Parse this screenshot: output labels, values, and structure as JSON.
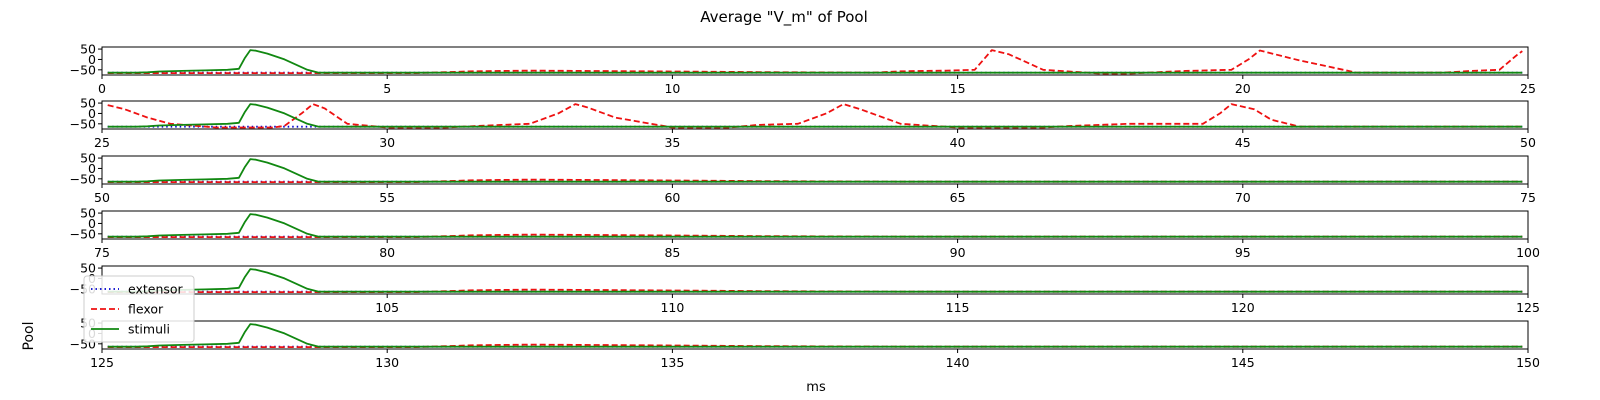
{
  "chart_data": {
    "type": "line",
    "title": "Average \"V_m\" of Pool",
    "xlabel": "ms",
    "ylabel": "Pool",
    "ylim": [
      -75,
      60
    ],
    "yticks": [
      50,
      0,
      -50
    ],
    "ytick_labels": [
      "50",
      "0",
      "−50"
    ],
    "grid": false,
    "legend": {
      "placement": "lower-left",
      "entries": [
        {
          "name": "extensor",
          "color": "#0000cc",
          "style": "dotted"
        },
        {
          "name": "flexor",
          "color": "#ee1111",
          "style": "dashed"
        },
        {
          "name": "stimuli",
          "color": "#118811",
          "style": "solid"
        }
      ]
    },
    "panels": [
      {
        "xlim": [
          0,
          25
        ],
        "xticks": [
          0,
          5,
          10,
          15,
          20,
          25
        ],
        "series": [
          {
            "name": "extensor",
            "x": [
              0.1,
              24.9
            ],
            "y": [
              -64,
              -64
            ]
          },
          {
            "name": "flexor",
            "x": [
              0.1,
              5.5,
              6.5,
              7.5,
              9.5,
              11.5,
              13.5,
              14.0,
              14.8,
              15.3,
              15.6,
              15.9,
              16.5,
              17.5,
              18.0,
              19.0,
              19.8,
              20.1,
              20.3,
              21.0,
              22.0,
              23.5,
              24.0,
              24.5,
              24.8,
              24.9
            ],
            "y": [
              -66,
              -66,
              -57,
              -54,
              -57,
              -61,
              -64,
              -57,
              -54,
              -50,
              45,
              25,
              -50,
              -68,
              -68,
              -55,
              -50,
              0,
              43,
              -5,
              -64,
              -64,
              -55,
              -50,
              20,
              40
            ]
          },
          {
            "name": "stimuli",
            "x": [
              0.1,
              0.6,
              0.8,
              1.0,
              1.4,
              1.8,
              2.2,
              2.4,
              2.5,
              2.6,
              2.7,
              2.9,
              3.2,
              3.6,
              3.8,
              4.5,
              24.9
            ],
            "y": [
              -64,
              -64,
              -62,
              -58,
              -55,
              -53,
              -50,
              -45,
              5,
              45,
              42,
              28,
              0,
              -50,
              -64,
              -64,
              -64
            ]
          }
        ]
      },
      {
        "xlim": [
          25,
          50
        ],
        "xticks": [
          25,
          30,
          35,
          40,
          45,
          50
        ],
        "series": [
          {
            "name": "extensor",
            "x": [
              25.1,
              49.9
            ],
            "y": [
              -64,
              -64
            ]
          },
          {
            "name": "flexor",
            "x": [
              25.1,
              25.4,
              25.8,
              26.2,
              27.0,
              28.0,
              28.2,
              28.5,
              28.7,
              28.9,
              29.3,
              30.0,
              31.0,
              32.0,
              32.5,
              33.0,
              33.3,
              33.5,
              34.0,
              35.0,
              36.0,
              36.5,
              37.2,
              37.7,
              38.0,
              38.3,
              39.0,
              40.0,
              41.5,
              42.0,
              43.0,
              44.3,
              44.6,
              44.8,
              45.2,
              45.5,
              46.0,
              47.0,
              49.9
            ],
            "y": [
              40,
              20,
              -20,
              -50,
              -68,
              -68,
              -60,
              0,
              45,
              25,
              -50,
              -68,
              -68,
              -55,
              -50,
              0,
              45,
              30,
              -20,
              -68,
              -68,
              -55,
              -50,
              0,
              45,
              20,
              -50,
              -68,
              -68,
              -60,
              -50,
              -50,
              0,
              45,
              20,
              -30,
              -64,
              -64,
              -64
            ]
          },
          {
            "name": "stimuli",
            "x": [
              25.1,
              25.6,
              25.8,
              26.0,
              26.4,
              26.8,
              27.2,
              27.4,
              27.5,
              27.6,
              27.7,
              27.9,
              28.2,
              28.6,
              28.8,
              29.5,
              49.9
            ],
            "y": [
              -64,
              -64,
              -62,
              -58,
              -55,
              -53,
              -50,
              -45,
              5,
              45,
              42,
              28,
              0,
              -50,
              -64,
              -64,
              -64
            ]
          }
        ]
      },
      {
        "xlim": [
          50,
          75
        ],
        "xticks": [
          50,
          55,
          60,
          65,
          70,
          75
        ],
        "series": [
          {
            "name": "extensor",
            "x": [
              50.1,
              74.9
            ],
            "y": [
              -64,
              -64
            ]
          },
          {
            "name": "flexor",
            "x": [
              50.1,
              55.5,
              56.5,
              57.5,
              59.5,
              61.5,
              64.0,
              74.9
            ],
            "y": [
              -66,
              -66,
              -57,
              -54,
              -57,
              -61,
              -64,
              -64
            ]
          },
          {
            "name": "stimuli",
            "x": [
              50.1,
              50.6,
              50.8,
              51.0,
              51.4,
              51.8,
              52.2,
              52.4,
              52.5,
              52.6,
              52.7,
              52.9,
              53.2,
              53.6,
              53.8,
              54.5,
              74.9
            ],
            "y": [
              -64,
              -64,
              -62,
              -58,
              -55,
              -53,
              -50,
              -45,
              5,
              45,
              42,
              28,
              0,
              -50,
              -64,
              -64,
              -64
            ]
          }
        ]
      },
      {
        "xlim": [
          75,
          100
        ],
        "xticks": [
          75,
          80,
          85,
          90,
          95,
          100
        ],
        "series": [
          {
            "name": "extensor",
            "x": [
              75.1,
              99.9
            ],
            "y": [
              -64,
              -64
            ]
          },
          {
            "name": "flexor",
            "x": [
              75.1,
              80.5,
              81.5,
              82.5,
              84.5,
              86.5,
              89.0,
              99.9
            ],
            "y": [
              -66,
              -66,
              -57,
              -54,
              -57,
              -61,
              -64,
              -64
            ]
          },
          {
            "name": "stimuli",
            "x": [
              75.1,
              75.6,
              75.8,
              76.0,
              76.4,
              76.8,
              77.2,
              77.4,
              77.5,
              77.6,
              77.7,
              77.9,
              78.2,
              78.6,
              78.8,
              79.5,
              99.9
            ],
            "y": [
              -64,
              -64,
              -62,
              -58,
              -55,
              -53,
              -50,
              -45,
              5,
              45,
              42,
              28,
              0,
              -50,
              -64,
              -64,
              -64
            ]
          }
        ]
      },
      {
        "xlim": [
          100,
          125
        ],
        "xticks": [
          105,
          110,
          115,
          120,
          125
        ],
        "series": [
          {
            "name": "extensor",
            "x": [
              100.1,
              124.9
            ],
            "y": [
              -64,
              -64
            ]
          },
          {
            "name": "flexor",
            "x": [
              100.1,
              105.5,
              106.5,
              107.5,
              109.5,
              111.5,
              114.0,
              124.9
            ],
            "y": [
              -66,
              -66,
              -57,
              -54,
              -57,
              -61,
              -64,
              -64
            ]
          },
          {
            "name": "stimuli",
            "x": [
              100.1,
              100.6,
              100.8,
              101.0,
              101.4,
              101.8,
              102.2,
              102.4,
              102.5,
              102.6,
              102.7,
              102.9,
              103.2,
              103.6,
              103.8,
              104.5,
              124.9
            ],
            "y": [
              -64,
              -64,
              -62,
              -58,
              -55,
              -53,
              -50,
              -45,
              5,
              45,
              42,
              28,
              0,
              -50,
              -64,
              -64,
              -64
            ]
          }
        ]
      },
      {
        "xlim": [
          125,
          150
        ],
        "xticks": [
          125,
          130,
          135,
          140,
          145,
          150
        ],
        "series": [
          {
            "name": "extensor",
            "x": [
              125.1,
              149.9
            ],
            "y": [
              -64,
              -64
            ]
          },
          {
            "name": "flexor",
            "x": [
              125.1,
              130.5,
              131.5,
              132.5,
              134.5,
              136.5,
              139.0,
              149.9
            ],
            "y": [
              -66,
              -66,
              -57,
              -54,
              -57,
              -61,
              -64,
              -64
            ]
          },
          {
            "name": "stimuli",
            "x": [
              125.1,
              125.6,
              125.8,
              126.0,
              126.4,
              126.8,
              127.2,
              127.4,
              127.5,
              127.6,
              127.7,
              127.9,
              128.2,
              128.6,
              128.8,
              129.5,
              149.9
            ],
            "y": [
              -64,
              -64,
              -62,
              -58,
              -55,
              -53,
              -50,
              -45,
              5,
              45,
              42,
              28,
              0,
              -50,
              -64,
              -64,
              -64
            ]
          }
        ]
      }
    ]
  }
}
